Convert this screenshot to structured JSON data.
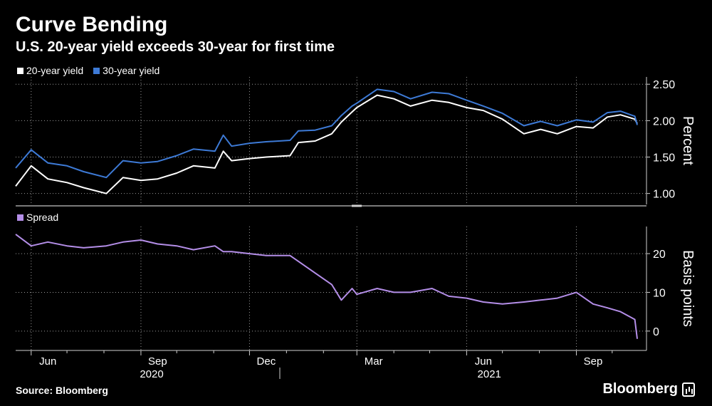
{
  "header": {
    "title": "Curve Bending",
    "subtitle": "U.S. 20-year yield exceeds 30-year for first time"
  },
  "footer": {
    "source": "Source: Bloomberg",
    "brand": "Bloomberg"
  },
  "colors": {
    "twenty": "#ffffff",
    "thirty": "#3d7ad6",
    "spread": "#b48ee8",
    "grid": "#9a9a9a",
    "background": "#000000"
  },
  "chart_data": [
    {
      "type": "line",
      "ylabel": "Percent",
      "ylim": [
        0.85,
        2.6
      ],
      "yticks": [
        "1.00",
        "1.50",
        "2.00",
        "2.50"
      ],
      "xtick_labels": [
        "Jun",
        "Sep",
        "Dec",
        "Mar",
        "Jun",
        "Sep"
      ],
      "year_labels": [
        "2020",
        "2021"
      ],
      "legend": "top-left",
      "grid": true,
      "x": [
        "2020-05-19",
        "2020-06-01",
        "2020-06-15",
        "2020-07-01",
        "2020-07-15",
        "2020-08-03",
        "2020-08-17",
        "2020-09-01",
        "2020-09-15",
        "2020-10-01",
        "2020-10-15",
        "2020-11-02",
        "2020-11-09",
        "2020-11-16",
        "2020-12-01",
        "2020-12-15",
        "2021-01-04",
        "2021-01-11",
        "2021-01-25",
        "2021-02-08",
        "2021-02-16",
        "2021-02-25",
        "2021-03-01",
        "2021-03-18",
        "2021-04-01",
        "2021-04-15",
        "2021-05-03",
        "2021-05-17",
        "2021-06-01",
        "2021-06-15",
        "2021-07-01",
        "2021-07-19",
        "2021-08-02",
        "2021-08-16",
        "2021-09-01",
        "2021-09-15",
        "2021-09-27",
        "2021-10-08",
        "2021-10-20",
        "2021-10-22"
      ],
      "series": [
        {
          "name": "20-year yield",
          "values": [
            1.1,
            1.38,
            1.2,
            1.15,
            1.08,
            1.0,
            1.22,
            1.18,
            1.2,
            1.28,
            1.38,
            1.35,
            1.58,
            1.45,
            1.48,
            1.5,
            1.52,
            1.7,
            1.72,
            1.82,
            1.98,
            2.12,
            2.18,
            2.35,
            2.3,
            2.2,
            2.28,
            2.25,
            2.18,
            2.14,
            2.02,
            1.82,
            1.88,
            1.82,
            1.92,
            1.9,
            2.05,
            2.08,
            2.02,
            1.96
          ]
        },
        {
          "name": "30-year yield",
          "values": [
            1.35,
            1.6,
            1.42,
            1.38,
            1.3,
            1.22,
            1.45,
            1.42,
            1.44,
            1.52,
            1.61,
            1.58,
            1.8,
            1.65,
            1.69,
            1.71,
            1.73,
            1.86,
            1.87,
            1.93,
            2.07,
            2.2,
            2.24,
            2.43,
            2.4,
            2.3,
            2.39,
            2.37,
            2.28,
            2.2,
            2.1,
            1.93,
            1.99,
            1.93,
            2.01,
            1.98,
            2.11,
            2.13,
            2.06,
            1.94
          ]
        }
      ]
    },
    {
      "type": "line",
      "ylabel": "Basis points",
      "ylim": [
        -5,
        27
      ],
      "yticks": [
        "0",
        "10",
        "20"
      ],
      "legend": "top-left",
      "grid": true,
      "x": [
        "2020-05-19",
        "2020-06-01",
        "2020-06-15",
        "2020-07-01",
        "2020-07-15",
        "2020-08-03",
        "2020-08-17",
        "2020-09-01",
        "2020-09-15",
        "2020-10-01",
        "2020-10-15",
        "2020-11-02",
        "2020-11-09",
        "2020-11-16",
        "2020-12-01",
        "2020-12-15",
        "2021-01-04",
        "2021-01-11",
        "2021-01-25",
        "2021-02-08",
        "2021-02-16",
        "2021-02-25",
        "2021-03-01",
        "2021-03-18",
        "2021-04-01",
        "2021-04-15",
        "2021-05-03",
        "2021-05-17",
        "2021-06-01",
        "2021-06-15",
        "2021-07-01",
        "2021-07-19",
        "2021-08-02",
        "2021-08-16",
        "2021-09-01",
        "2021-09-15",
        "2021-09-27",
        "2021-10-08",
        "2021-10-20",
        "2021-10-22"
      ],
      "series": [
        {
          "name": "Spread",
          "values": [
            25,
            22,
            23,
            22,
            21.5,
            22,
            23,
            23.5,
            22.5,
            22,
            21,
            22,
            20.5,
            20.5,
            20,
            19.5,
            19.5,
            18,
            15,
            12,
            8,
            11,
            9.5,
            11,
            10,
            10,
            11,
            9,
            8.5,
            7.5,
            7,
            7.5,
            8,
            8.5,
            10,
            7,
            6,
            5,
            3,
            -2
          ]
        }
      ]
    }
  ]
}
